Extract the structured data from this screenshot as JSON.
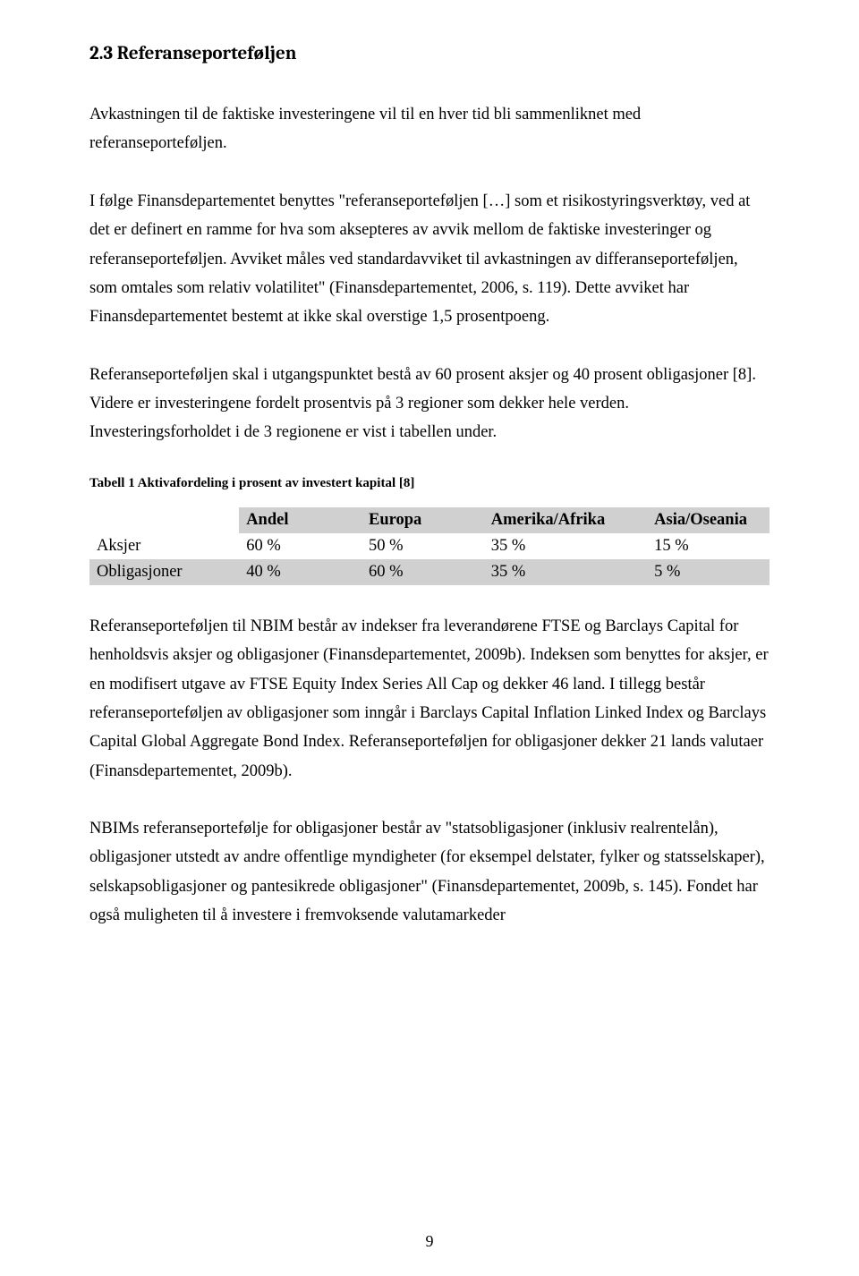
{
  "heading": "2.3  Referanseporteføljen",
  "paragraphs": {
    "p1": "Avkastningen til de faktiske investeringene vil til en hver tid bli sammenliknet med referanseporteføljen.",
    "p2": "I følge Finansdepartementet benyttes \"referanseporteføljen […] som et risikostyringsverktøy, ved at det er definert en ramme for hva som aksepteres av avvik mellom de faktiske investeringer og referanseporteføljen. Avviket måles ved standardavviket til avkastningen av differanseporteføljen, som omtales som relativ volatilitet\" (Finansdepartementet, 2006, s. 119). Dette avviket har Finansdepartementet bestemt at ikke skal overstige 1,5 prosentpoeng.",
    "p3": "Referanseporteføljen skal i utgangspunktet bestå av 60 prosent aksjer og 40 prosent obligasjoner [8]. Videre er investeringene fordelt prosentvis på 3 regioner som dekker hele verden. Investeringsforholdet i de 3 regionene er vist i tabellen under.",
    "p4": "Referanseporteføljen til NBIM består av indekser fra leverandørene FTSE og Barclays Capital for henholdsvis aksjer og obligasjoner (Finansdepartementet, 2009b). Indeksen som benyttes for aksjer, er en modifisert utgave av FTSE Equity Index Series All Cap og dekker 46 land. I tillegg består referanseporteføljen av obligasjoner som inngår i Barclays Capital Inflation Linked Index og Barclays Capital Global Aggregate Bond Index. Referanseporteføljen for obligasjoner dekker 21 lands valutaer (Finansdepartementet, 2009b).",
    "p5": "NBIMs referanseportefølje for obligasjoner består av \"statsobligasjoner (inklusiv realrentelån), obligasjoner utstedt av andre offentlige myndigheter (for eksempel delstater, fylker og statsselskaper), selskapsobligasjoner og pantesikrede obligasjoner\" (Finansdepartementet, 2009b, s. 145). Fondet har også muligheten til å investere i fremvoksende valutamarkeder"
  },
  "table": {
    "caption": "Tabell 1 Aktivafordeling i prosent av investert kapital [8]",
    "columns": [
      "",
      "Andel",
      "Europa",
      "Amerika/Afrika",
      "Asia/Oseania"
    ],
    "rows": [
      {
        "label": "Aksjer",
        "cells": [
          "60 %",
          "50 %",
          "35 %",
          "15 %"
        ],
        "shaded": false
      },
      {
        "label": "Obligasjoner",
        "cells": [
          "40 %",
          "60 %",
          "35 %",
          "5 %"
        ],
        "shaded": true
      }
    ],
    "header_bg": "#d0d0d0",
    "shaded_bg": "#d0d0d0",
    "plain_bg": "#ffffff",
    "font_size": 18.5,
    "col_widths": [
      "22%",
      "18%",
      "18%",
      "24%",
      "18%"
    ]
  },
  "page_number": "9",
  "colors": {
    "text": "#000000",
    "background": "#ffffff"
  }
}
